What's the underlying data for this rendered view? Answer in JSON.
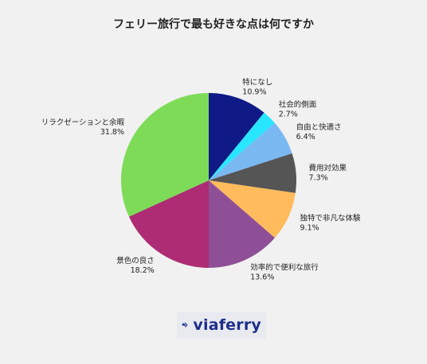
{
  "chart_data": {
    "type": "pie",
    "title": "フェリー旅行で最も好きな点は何ですか",
    "start_angle_deg": 0,
    "direction": "clockwise",
    "slices": [
      {
        "label": "特になし",
        "value": 10.9,
        "value_label": "10.9%",
        "color": "#0f1a86"
      },
      {
        "label": "社会的側面",
        "value": 2.7,
        "value_label": "2.7%",
        "color": "#29e6ff"
      },
      {
        "label": "自由と快適さ",
        "value": 6.4,
        "value_label": "6.4%",
        "color": "#7ab8f2"
      },
      {
        "label": "費用対効果",
        "value": 7.3,
        "value_label": "7.3%",
        "color": "#555555"
      },
      {
        "label": "独特で非凡な体験",
        "value": 9.1,
        "value_label": "9.1%",
        "color": "#ffbb5c"
      },
      {
        "label": "効率的で便利な旅行",
        "value": 13.6,
        "value_label": "13.6%",
        "color": "#8f4f96"
      },
      {
        "label": "景色の良さ",
        "value": 18.2,
        "value_label": "18.2%",
        "color": "#ad2c73"
      },
      {
        "label": "リラクゼーションと余暇",
        "value": 31.8,
        "value_label": "31.8%",
        "color": "#7edb58"
      }
    ]
  },
  "brand": {
    "name": "viaferry",
    "icon": "viaferry-logo-icon",
    "text_color": "#1f2f8a",
    "box_color": "#e8eaf0"
  }
}
